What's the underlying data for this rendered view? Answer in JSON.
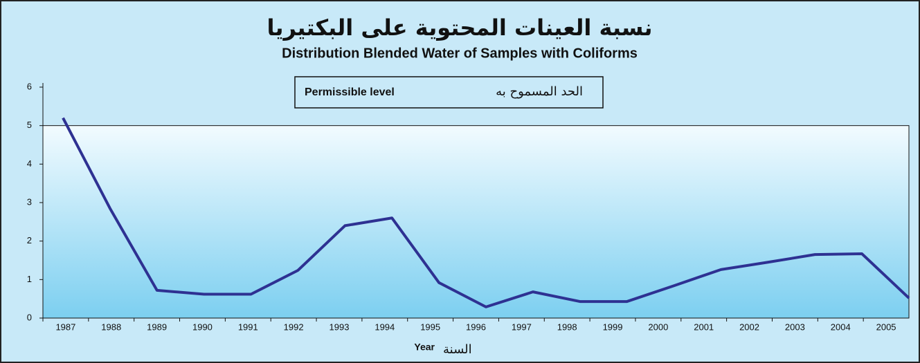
{
  "chart_data": {
    "type": "line",
    "title": "نسبة العينات المحتوية على البكتيريا",
    "subtitle": "Distribution Blended Water of Samples with Coliforms",
    "x_label": "Year",
    "x_label_ar": "السنة",
    "categories": [
      "1987",
      "1988",
      "1989",
      "1990",
      "1991",
      "1992",
      "1993",
      "1994",
      "1995",
      "1996",
      "1997",
      "1998",
      "1999",
      "2000",
      "2001",
      "2002",
      "2003",
      "2004",
      "2005"
    ],
    "series": [
      {
        "name": "Coliforms",
        "color": "#2e3192",
        "values": [
          5.2,
          2.85,
          0.72,
          0.62,
          0.62,
          1.24,
          2.4,
          2.6,
          0.92,
          0.29,
          0.68,
          0.43,
          0.43,
          0.84,
          1.26,
          1.45,
          1.65,
          1.67,
          0.52
        ]
      }
    ],
    "permissible_level": {
      "value": 5,
      "label": "Permissible level",
      "label_ar": "الحد المسموح به"
    },
    "ylim": [
      0,
      6
    ],
    "yticks": [
      0,
      1,
      2,
      3,
      4,
      5,
      6
    ]
  }
}
